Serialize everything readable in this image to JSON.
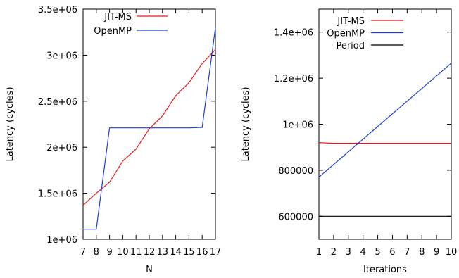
{
  "chart_data": [
    {
      "type": "line",
      "xlabel": "N",
      "ylabel": "Latency (cycles)",
      "xlim": [
        7,
        17
      ],
      "ylim": [
        1000000,
        3500000
      ],
      "xticks": [
        7,
        8,
        9,
        10,
        11,
        12,
        13,
        14,
        15,
        16,
        17
      ],
      "xtick_labels": [
        "7",
        "8",
        "9",
        "10",
        "11",
        "12",
        "13",
        "14",
        "15",
        "16",
        "17"
      ],
      "yticks": [
        1000000,
        1500000,
        2000000,
        2500000,
        3000000,
        3500000
      ],
      "ytick_labels": [
        "1e+06",
        "1.5e+06",
        "2e+06",
        "2.5e+06",
        "3e+06",
        "3.5e+06"
      ],
      "grid": false,
      "legend_position": "top-left",
      "series": [
        {
          "name": "JIT-MS",
          "color": "#e41a1c",
          "x": [
            7,
            8,
            9,
            10,
            11,
            12,
            13,
            14,
            15,
            16,
            17
          ],
          "y": [
            1370000,
            1500000,
            1620000,
            1850000,
            1980000,
            2200000,
            2340000,
            2560000,
            2700000,
            2910000,
            3060000
          ]
        },
        {
          "name": "OpenMP",
          "color": "#1f3fd6",
          "x": [
            7,
            8,
            9,
            10,
            11,
            12,
            13,
            14,
            15,
            16,
            17
          ],
          "y": [
            1110000,
            1110000,
            2210000,
            2210000,
            2210000,
            2210000,
            2210000,
            2210000,
            2210000,
            2215000,
            3300000
          ]
        }
      ]
    },
    {
      "type": "line",
      "xlabel": "Iterations",
      "ylabel": "Latency (cycles)",
      "xlim": [
        1,
        10
      ],
      "ylim": [
        500000,
        1500000
      ],
      "xticks": [
        1,
        2,
        3,
        4,
        5,
        6,
        7,
        8,
        9,
        10
      ],
      "xtick_labels": [
        "1",
        "2",
        "3",
        "4",
        "5",
        "6",
        "7",
        "8",
        "9",
        "10"
      ],
      "yticks": [
        600000,
        800000,
        1000000,
        1200000,
        1400000
      ],
      "ytick_labels": [
        "600000",
        "800000",
        "1e+06",
        "1.2e+06",
        "1.4e+06"
      ],
      "grid": false,
      "legend_position": "top-left",
      "series": [
        {
          "name": "JIT-MS",
          "color": "#e41a1c",
          "x": [
            1,
            2,
            3,
            4,
            5,
            6,
            7,
            8,
            9,
            10
          ],
          "y": [
            920000,
            917000,
            917000,
            917000,
            917000,
            917000,
            917000,
            917000,
            917000,
            917000
          ]
        },
        {
          "name": "OpenMP",
          "color": "#1f3fd6",
          "x": [
            1,
            10
          ],
          "y": [
            770000,
            1265000
          ]
        },
        {
          "name": "Period",
          "color": "#000000",
          "x": [
            1,
            10
          ],
          "y": [
            600000,
            600000
          ]
        }
      ]
    }
  ]
}
